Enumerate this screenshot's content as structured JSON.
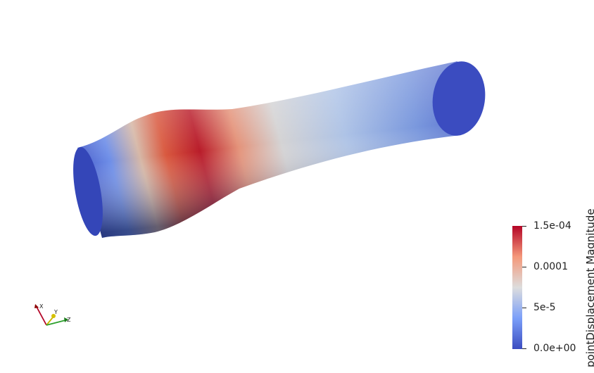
{
  "colorbar": {
    "title": "pointDisplacement Magnitude",
    "max_label": "1.5e-04",
    "tick_1e4": "0.0001",
    "tick_5e5": "5e-5",
    "min_label": "0.0e+00",
    "colors": {
      "low": "#3b4cc0",
      "mid": "#dddddd",
      "high": "#b40426"
    }
  },
  "axes": {
    "x_label": "X",
    "y_label": "Y",
    "z_label": "Z"
  }
}
